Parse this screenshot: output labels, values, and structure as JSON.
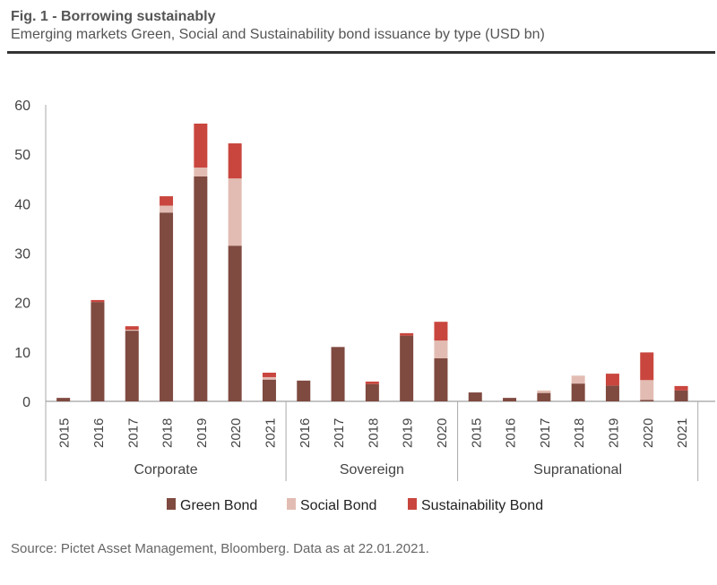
{
  "header": {
    "title": "Fig. 1 - Borrowing sustainably",
    "subtitle": "Emerging markets Green, Social and Sustainability bond issuance by type (USD bn)"
  },
  "footer": {
    "source": "Source: Pictet Asset Management, Bloomberg. Data as at 22.01.2021."
  },
  "chart_data": {
    "type": "bar",
    "stacked": true,
    "title": "Fig. 1 - Borrowing sustainably",
    "subtitle": "Emerging markets Green, Social and Sustainability bond issuance by type (USD bn)",
    "xlabel": "",
    "ylabel": "",
    "ylim": [
      0,
      60
    ],
    "yticks": [
      0,
      10,
      20,
      30,
      40,
      50,
      60
    ],
    "grid": false,
    "legend_position": "bottom",
    "groups": [
      {
        "name": "Corporate",
        "categories": [
          "2015",
          "2016",
          "2017",
          "2018",
          "2019",
          "2020",
          "2021"
        ]
      },
      {
        "name": "Sovereign",
        "categories": [
          "2016",
          "2017",
          "2018",
          "2019",
          "2020"
        ]
      },
      {
        "name": "Supranational",
        "categories": [
          "2015",
          "2016",
          "2017",
          "2018",
          "2019",
          "2020",
          "2021"
        ]
      }
    ],
    "series": [
      {
        "name": "Green Bond",
        "color": "#7f4a40",
        "values": [
          0.7,
          20.1,
          14.3,
          38.2,
          45.5,
          31.5,
          4.4,
          4.2,
          11.0,
          3.5,
          13.3,
          8.7,
          1.8,
          0.7,
          1.7,
          3.6,
          3.2,
          0.3,
          2.2
        ]
      },
      {
        "name": "Social Bond",
        "color": "#e2bcb3",
        "values": [
          0.0,
          0.0,
          0.2,
          1.4,
          1.8,
          13.6,
          0.5,
          0.0,
          0.0,
          0.0,
          0.0,
          3.6,
          0.0,
          0.0,
          0.5,
          1.6,
          0.0,
          4.0,
          0.0
        ]
      },
      {
        "name": "Sustainability Bond",
        "color": "#c9463e",
        "values": [
          0.0,
          0.4,
          0.7,
          1.9,
          8.9,
          7.1,
          0.9,
          0.0,
          0.0,
          0.5,
          0.5,
          3.8,
          0.0,
          0.0,
          0.0,
          0.0,
          2.4,
          5.6,
          0.9
        ]
      }
    ]
  }
}
